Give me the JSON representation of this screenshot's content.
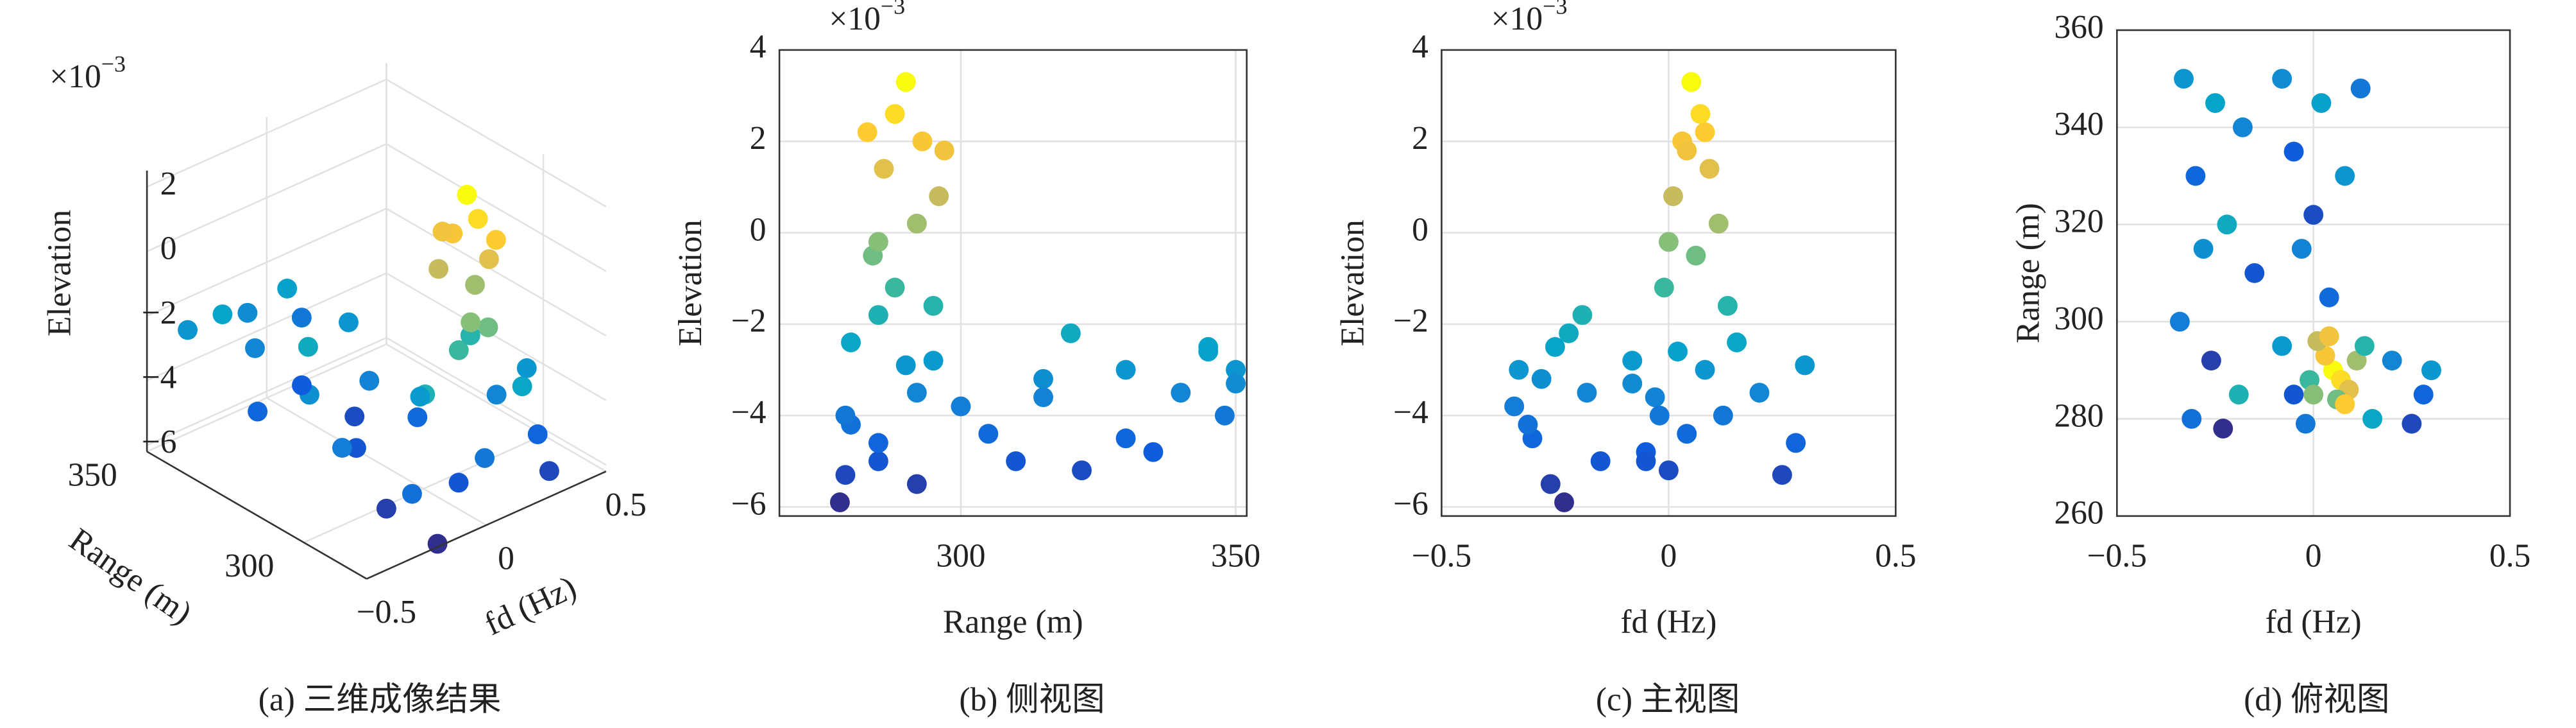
{
  "chart_data": [
    {
      "type": "scatter3d",
      "caption": "(a) 三维成像结果",
      "xlabel": "fd (Hz)",
      "ylabel": "Range (m)",
      "zlabel": "Elevation",
      "scale_base": "×10",
      "scale_power": "−3",
      "xlim": [
        -0.5,
        0.5
      ],
      "xticks": [
        {
          "value": -0.5,
          "label": "−0.5"
        },
        0,
        0.5
      ],
      "ylim": [
        280,
        350
      ],
      "yticks": [
        300,
        350
      ],
      "zlim": [
        -6.2,
        2.5
      ],
      "zticks": [
        {
          "value": -6,
          "label": "−6"
        },
        {
          "value": -4,
          "label": "−4"
        },
        {
          "value": -2,
          "label": "−2"
        },
        0,
        2
      ],
      "grid": true,
      "clim": [
        -6,
        3.3
      ],
      "colormap": [
        "#352a87",
        "#0f5cdd",
        "#1481d6",
        "#06a4ca",
        "#2eb7a4",
        "#87bf77",
        "#d1bb59",
        "#fec832",
        "#f9fb0e"
      ],
      "x": [
        -0.33,
        -0.25,
        -0.18,
        -0.3,
        -0.22,
        -0.15,
        -0.34,
        -0.26,
        -0.19,
        -0.31,
        -0.23,
        -0.28,
        -0.08,
        0.02,
        0.12,
        -0.05,
        0.08,
        0.0,
        -0.03,
        0.04,
        -0.08,
        -0.05,
        0.2,
        0.28,
        0.25,
        0.15,
        -0.02,
        0.3,
        0.05,
        0.07,
        0.03,
        0.09,
        0.01,
        0.11,
        0.06,
        -0.01,
        0.13,
        0.04,
        0.08,
        0.0
      ],
      "y": [
        350,
        345,
        340,
        330,
        320,
        310,
        300,
        292,
        285,
        280,
        278,
        315,
        350,
        345,
        348,
        335,
        330,
        322,
        315,
        305,
        295,
        285,
        292,
        285,
        279,
        280,
        279,
        290,
        290,
        288,
        293,
        286,
        296,
        292,
        284,
        288,
        295,
        297,
        283,
        285
      ],
      "z": [
        -3.0,
        -2.5,
        -3.5,
        -4.5,
        -2.2,
        -5.0,
        -3.8,
        -5.5,
        -1.8,
        -4.2,
        -5.9,
        -3.2,
        -3.3,
        -2.6,
        -4.0,
        -4.8,
        -3.0,
        -5.2,
        -3.6,
        -4.4,
        -2.8,
        -5.0,
        -3.5,
        -4.6,
        -5.3,
        -2.4,
        -4.0,
        -2.9,
        3.3,
        2.6,
        2.0,
        1.4,
        0.8,
        0.2,
        -0.5,
        -1.2,
        -1.6,
        1.8,
        2.2,
        -0.2
      ]
    },
    {
      "type": "scatter",
      "caption": "(b) 侧视图",
      "xlabel": "Range (m)",
      "ylabel": "Elevation",
      "scale_base": "×10",
      "scale_power": "−3",
      "xlim": [
        267,
        352
      ],
      "xticks": [
        300,
        350
      ],
      "ylim": [
        -6.2,
        4
      ],
      "yticks": [
        {
          "value": -6,
          "label": "−6"
        },
        {
          "value": -4,
          "label": "−4"
        },
        {
          "value": -2,
          "label": "−2"
        },
        0,
        2,
        4
      ],
      "grid": true,
      "clim": [
        -6,
        3.3
      ],
      "x": [
        350,
        345,
        340,
        330,
        320,
        310,
        300,
        292,
        285,
        280,
        278,
        315,
        350,
        345,
        348,
        335,
        330,
        322,
        315,
        305,
        295,
        285,
        292,
        285,
        279,
        280,
        279,
        290,
        290,
        288,
        293,
        286,
        296,
        292,
        284,
        288,
        295,
        297,
        283,
        285
      ],
      "y": [
        -3.0,
        -2.5,
        -3.5,
        -4.5,
        -2.2,
        -5.0,
        -3.8,
        -5.5,
        -1.8,
        -4.2,
        -5.9,
        -3.2,
        -3.3,
        -2.6,
        -4.0,
        -4.8,
        -3.0,
        -5.2,
        -3.6,
        -4.4,
        -2.8,
        -5.0,
        -3.5,
        -4.6,
        -5.3,
        -2.4,
        -4.0,
        -2.9,
        3.3,
        2.6,
        2.0,
        1.4,
        0.8,
        0.2,
        -0.5,
        -1.2,
        -1.6,
        1.8,
        2.2,
        -0.2
      ]
    },
    {
      "type": "scatter",
      "caption": "(c) 主视图",
      "xlabel": "fd (Hz)",
      "ylabel": "Elevation",
      "scale_base": "×10",
      "scale_power": "−3",
      "xlim": [
        -0.5,
        0.5
      ],
      "xticks": [
        {
          "value": -0.5,
          "label": "−0.5"
        },
        0,
        0.5
      ],
      "ylim": [
        -6.2,
        4
      ],
      "yticks": [
        {
          "value": -6,
          "label": "−6"
        },
        {
          "value": -4,
          "label": "−4"
        },
        {
          "value": -2,
          "label": "−2"
        },
        0,
        2,
        4
      ],
      "grid": true,
      "clim": [
        -6,
        3.3
      ],
      "x": [
        -0.33,
        -0.25,
        -0.18,
        -0.3,
        -0.22,
        -0.15,
        -0.34,
        -0.26,
        -0.19,
        -0.31,
        -0.23,
        -0.28,
        -0.08,
        0.02,
        0.12,
        -0.05,
        0.08,
        0.0,
        -0.03,
        0.04,
        -0.08,
        -0.05,
        0.2,
        0.28,
        0.25,
        0.15,
        -0.02,
        0.3,
        0.05,
        0.07,
        0.03,
        0.09,
        0.01,
        0.11,
        0.06,
        -0.01,
        0.13,
        0.04,
        0.08,
        0.0
      ],
      "y": [
        -3.0,
        -2.5,
        -3.5,
        -4.5,
        -2.2,
        -5.0,
        -3.8,
        -5.5,
        -1.8,
        -4.2,
        -5.9,
        -3.2,
        -3.3,
        -2.6,
        -4.0,
        -4.8,
        -3.0,
        -5.2,
        -3.6,
        -4.4,
        -2.8,
        -5.0,
        -3.5,
        -4.6,
        -5.3,
        -2.4,
        -4.0,
        -2.9,
        3.3,
        2.6,
        2.0,
        1.4,
        0.8,
        0.2,
        -0.5,
        -1.2,
        -1.6,
        1.8,
        2.2,
        -0.2
      ]
    },
    {
      "type": "scatter",
      "caption": "(d) 俯视图",
      "xlabel": "fd (Hz)",
      "ylabel": "Range (m)",
      "xlim": [
        -0.5,
        0.5
      ],
      "xticks": [
        {
          "value": -0.5,
          "label": "−0.5"
        },
        0,
        0.5
      ],
      "ylim": [
        260,
        360
      ],
      "yticks": [
        260,
        280,
        300,
        320,
        340,
        360
      ],
      "grid": true,
      "clim": [
        -6,
        3.3
      ],
      "x": [
        -0.33,
        -0.25,
        -0.18,
        -0.3,
        -0.22,
        -0.15,
        -0.34,
        -0.26,
        -0.19,
        -0.31,
        -0.23,
        -0.28,
        -0.08,
        0.02,
        0.12,
        -0.05,
        0.08,
        0.0,
        -0.03,
        0.04,
        -0.08,
        -0.05,
        0.2,
        0.28,
        0.25,
        0.15,
        -0.02,
        0.3,
        0.05,
        0.07,
        0.03,
        0.09,
        0.01,
        0.11,
        0.06,
        -0.01,
        0.13,
        0.04,
        0.08,
        0.0
      ],
      "y": [
        350,
        345,
        340,
        330,
        320,
        310,
        300,
        292,
        285,
        280,
        278,
        315,
        350,
        345,
        348,
        335,
        330,
        322,
        315,
        305,
        295,
        285,
        292,
        285,
        279,
        280,
        279,
        290,
        290,
        288,
        293,
        286,
        296,
        292,
        284,
        288,
        295,
        297,
        283,
        285
      ],
      "color_values": [
        -3.0,
        -2.5,
        -3.5,
        -4.5,
        -2.2,
        -5.0,
        -3.8,
        -5.5,
        -1.8,
        -4.2,
        -5.9,
        -3.2,
        -3.3,
        -2.6,
        -4.0,
        -4.8,
        -3.0,
        -5.2,
        -3.6,
        -4.4,
        -2.8,
        -5.0,
        -3.5,
        -4.6,
        -5.3,
        -2.4,
        -4.0,
        -2.9,
        3.3,
        2.6,
        2.0,
        1.4,
        0.8,
        0.2,
        -0.5,
        -1.2,
        -1.6,
        1.8,
        2.2,
        -0.2
      ]
    }
  ]
}
